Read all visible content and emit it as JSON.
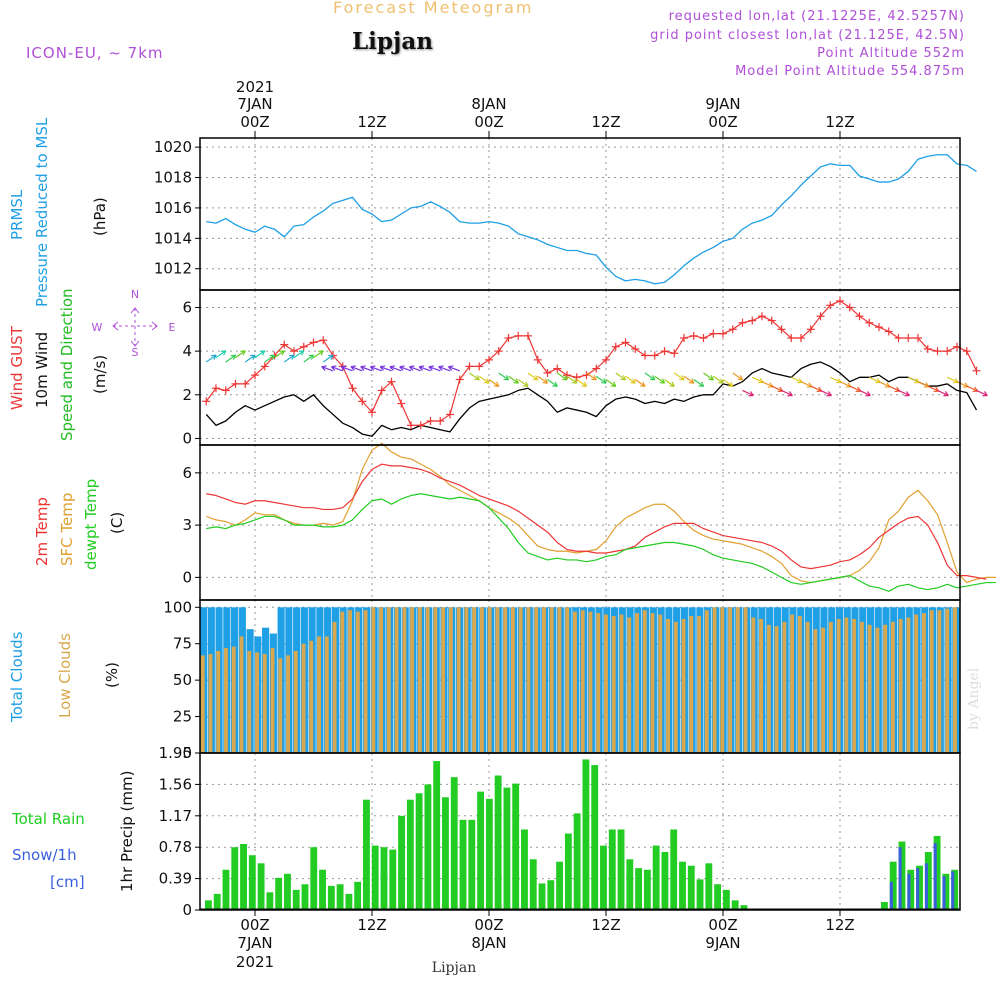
{
  "header": {
    "title": "Forecast Meteogram",
    "station": "Lipjan",
    "model": "ICON-EU, ~ 7km",
    "info": [
      "requested lon,lat (21.1225E, 42.5257N)",
      "grid point closest lon,lat (21.125E, 42.5N)",
      "Point Altitude 552m",
      "Model Point Altitude 554.875m"
    ]
  },
  "time_axis": {
    "top_year": "2021",
    "ticks": [
      {
        "day": "7JAN",
        "hour": "00Z",
        "year": "2021"
      },
      {
        "day": "",
        "hour": "12Z",
        "year": ""
      },
      {
        "day": "8JAN",
        "hour": "00Z",
        "year": ""
      },
      {
        "day": "",
        "hour": "12Z",
        "year": ""
      },
      {
        "day": "9JAN",
        "hour": "00Z",
        "year": ""
      },
      {
        "day": "",
        "hour": "12Z",
        "year": ""
      }
    ],
    "bottom_label": "Lipjan"
  },
  "compass": {
    "n": "N",
    "s": "S",
    "w": "W",
    "e": "E"
  },
  "watermark": "by Angel",
  "colors": {
    "pressure": "#1e9fe6",
    "gust": "#ee3535",
    "wind": "#000000",
    "dir": "#22bb22",
    "t2m": "#ee3535",
    "tsfc": "#e0a030",
    "dewpt": "#22cc22",
    "total_clouds": "#1e9fe6",
    "low_clouds": "#d9a84e",
    "rain": "#22cc22",
    "snow": "#3a5fdd",
    "purple": "#b04fd8"
  },
  "chart_data": [
    {
      "type": "line",
      "panel": "pressure",
      "xlabel": "",
      "ylabel": "(hPa)",
      "label_lines": [
        "PRMSL",
        "Pressure Reduced to MSL"
      ],
      "yticks": [
        1012,
        1014,
        1016,
        1018,
        1020
      ],
      "ylim": [
        1010.6,
        1020.6
      ],
      "x_hours_from_7jan00z": "0 = 7JAN 00Z, hourly step, first value at -5",
      "series": [
        {
          "name": "PRMSL",
          "values": [
            1015.1,
            1015.0,
            1015.3,
            1014.9,
            1014.6,
            1014.4,
            1014.8,
            1014.6,
            1014.1,
            1014.8,
            1014.9,
            1015.4,
            1015.8,
            1016.3,
            1016.5,
            1016.7,
            1015.9,
            1015.6,
            1015.1,
            1015.2,
            1015.6,
            1016.0,
            1016.1,
            1016.4,
            1016.1,
            1015.7,
            1015.1,
            1015.0,
            1015.0,
            1015.1,
            1015.0,
            1014.8,
            1014.3,
            1014.1,
            1013.9,
            1013.6,
            1013.4,
            1013.2,
            1013.2,
            1013.0,
            1012.9,
            1012.1,
            1011.5,
            1011.2,
            1011.3,
            1011.2,
            1011.0,
            1011.1,
            1011.6,
            1012.2,
            1012.7,
            1013.1,
            1013.4,
            1013.8,
            1014.0,
            1014.6,
            1015.0,
            1015.2,
            1015.5,
            1016.2,
            1016.8,
            1017.5,
            1018.1,
            1018.7,
            1018.9,
            1018.8,
            1018.8,
            1018.1,
            1017.9,
            1017.7,
            1017.7,
            1017.9,
            1018.4,
            1019.2,
            1019.4,
            1019.5,
            1019.5,
            1018.9,
            1018.8,
            1018.4
          ]
        }
      ]
    },
    {
      "type": "line",
      "panel": "wind",
      "ylabel": "(m/s)",
      "label_lines": [
        "Wind GUST",
        "10m Wind",
        "Speed and Direction"
      ],
      "yticks": [
        0,
        2,
        4,
        6
      ],
      "ylim": [
        -0.3,
        6.8
      ],
      "series": [
        {
          "name": "Wind GUST",
          "values": [
            1.7,
            2.3,
            2.2,
            2.5,
            2.5,
            2.9,
            3.3,
            3.8,
            4.3,
            4.0,
            4.2,
            4.4,
            4.5,
            3.8,
            3.3,
            2.3,
            1.7,
            1.2,
            2.2,
            2.6,
            1.6,
            0.6,
            0.6,
            0.8,
            0.8,
            1.1,
            2.7,
            3.3,
            3.3,
            3.6,
            4.0,
            4.6,
            4.7,
            4.7,
            3.6,
            3.0,
            3.2,
            2.9,
            2.8,
            2.9,
            3.2,
            3.6,
            4.2,
            4.4,
            4.1,
            3.8,
            3.8,
            4.0,
            3.9,
            4.6,
            4.7,
            4.6,
            4.8,
            4.8,
            5.0,
            5.3,
            5.4,
            5.6,
            5.4,
            5.0,
            4.6,
            4.6,
            5.0,
            5.6,
            6.1,
            6.3,
            6.0,
            5.6,
            5.3,
            5.1,
            4.9,
            4.6,
            4.6,
            4.6,
            4.1,
            4.0,
            4.0,
            4.2,
            4.0,
            3.1
          ]
        },
        {
          "name": "10m Wind",
          "values": [
            1.1,
            0.6,
            0.8,
            1.2,
            1.5,
            1.3,
            1.5,
            1.7,
            1.9,
            2.0,
            1.7,
            2.0,
            1.5,
            1.1,
            0.7,
            0.5,
            0.2,
            0.1,
            0.6,
            0.4,
            0.5,
            0.4,
            0.6,
            0.5,
            0.4,
            0.3,
            0.9,
            1.4,
            1.7,
            1.8,
            1.9,
            2.0,
            2.2,
            2.3,
            2.0,
            1.7,
            1.2,
            1.4,
            1.3,
            1.2,
            1.0,
            1.5,
            1.8,
            1.9,
            1.8,
            1.6,
            1.7,
            1.6,
            1.8,
            1.7,
            1.9,
            2.0,
            2.0,
            2.5,
            2.4,
            2.6,
            3.0,
            3.2,
            3.0,
            2.9,
            2.8,
            3.2,
            3.4,
            3.5,
            3.3,
            3.0,
            2.6,
            2.8,
            2.8,
            2.9,
            2.6,
            2.8,
            2.8,
            2.6,
            2.4,
            2.4,
            2.5,
            2.2,
            2.1,
            1.3
          ]
        }
      ],
      "direction_arrows": "coloured arrows drawn along 10m wind, pointing toward travel direction"
    },
    {
      "type": "line",
      "panel": "temperature",
      "ylabel": "(C)",
      "label_lines": [
        "2m Temp",
        "SFC Temp",
        "dewpt Temp"
      ],
      "yticks": [
        0,
        3,
        6
      ],
      "ylim": [
        -1.3,
        7.6
      ],
      "series": [
        {
          "name": "2m Temp",
          "values": [
            4.8,
            4.7,
            4.5,
            4.3,
            4.2,
            4.4,
            4.4,
            4.3,
            4.2,
            4.1,
            4.0,
            4.0,
            3.9,
            3.9,
            4.0,
            4.5,
            5.5,
            6.2,
            6.5,
            6.4,
            6.4,
            6.3,
            6.2,
            6.0,
            5.7,
            5.5,
            5.3,
            5.0,
            4.7,
            4.5,
            4.3,
            4.1,
            3.8,
            3.4,
            3.0,
            2.6,
            2.0,
            1.6,
            1.5,
            1.5,
            1.4,
            1.4,
            1.5,
            1.6,
            1.8,
            2.3,
            2.6,
            2.9,
            3.1,
            3.1,
            3.1,
            2.8,
            2.6,
            2.4,
            2.3,
            2.2,
            2.1,
            2.0,
            1.8,
            1.5,
            1.0,
            0.6,
            0.5,
            0.6,
            0.7,
            0.9,
            1.0,
            1.3,
            1.7,
            2.3,
            2.7,
            3.1,
            3.4,
            3.5,
            3.0,
            2.0,
            0.7,
            0.1,
            0.1,
            0.0,
            -0.1
          ]
        },
        {
          "name": "SFC Temp",
          "values": [
            3.5,
            3.3,
            3.2,
            3.0,
            3.3,
            3.7,
            3.6,
            3.6,
            3.3,
            3.1,
            3.0,
            3.0,
            3.1,
            3.0,
            3.2,
            4.4,
            6.2,
            7.3,
            7.7,
            7.2,
            6.9,
            6.8,
            6.5,
            6.2,
            5.8,
            5.3,
            5.0,
            4.7,
            4.4,
            4.0,
            3.7,
            3.4,
            3.0,
            2.4,
            1.8,
            1.6,
            1.5,
            1.5,
            1.4,
            1.5,
            1.6,
            2.1,
            2.9,
            3.4,
            3.7,
            4.0,
            4.2,
            4.2,
            3.8,
            3.2,
            2.7,
            2.4,
            2.2,
            2.1,
            2.0,
            1.9,
            1.7,
            1.5,
            1.2,
            0.8,
            0.1,
            -0.2,
            -0.3,
            -0.2,
            -0.1,
            0.0,
            0.1,
            0.4,
            0.9,
            1.7,
            3.3,
            3.8,
            4.6,
            5.0,
            4.4,
            3.6,
            2.0,
            0.3,
            -0.3,
            -0.1,
            0.0,
            0.0
          ]
        },
        {
          "name": "dewpt Temp",
          "values": [
            2.8,
            2.9,
            2.8,
            3.0,
            3.1,
            3.3,
            3.5,
            3.5,
            3.3,
            3.0,
            3.0,
            3.0,
            2.9,
            2.9,
            3.0,
            3.3,
            3.9,
            4.4,
            4.5,
            4.2,
            4.5,
            4.7,
            4.8,
            4.7,
            4.6,
            4.5,
            4.6,
            4.5,
            4.4,
            4.0,
            3.4,
            2.8,
            2.0,
            1.4,
            1.2,
            1.0,
            1.1,
            1.0,
            1.0,
            0.9,
            1.0,
            1.2,
            1.3,
            1.6,
            1.7,
            1.8,
            1.9,
            2.0,
            2.0,
            1.9,
            1.8,
            1.6,
            1.3,
            1.1,
            1.0,
            0.9,
            0.8,
            0.6,
            0.3,
            0.0,
            -0.3,
            -0.4,
            -0.3,
            -0.2,
            -0.1,
            0.0,
            0.1,
            -0.2,
            -0.5,
            -0.6,
            -0.8,
            -0.5,
            -0.4,
            -0.6,
            -0.7,
            -0.6,
            -0.4,
            -0.6,
            -0.5,
            -0.4,
            -0.3,
            -0.3
          ]
        }
      ]
    },
    {
      "type": "bar",
      "panel": "clouds",
      "ylabel": "(%)",
      "label_lines": [
        "Total Clouds",
        "Low Clouds"
      ],
      "yticks": [
        0,
        25,
        50,
        75,
        100
      ],
      "ylim": [
        0,
        105
      ],
      "series": [
        {
          "name": "Total Clouds",
          "values": [
            100,
            100,
            100,
            100,
            100,
            100,
            85,
            80,
            86,
            82,
            100,
            100,
            100,
            100,
            100,
            100,
            100,
            100,
            100,
            100,
            100,
            100,
            100,
            100,
            100,
            100,
            100,
            100,
            100,
            100,
            100,
            100,
            100,
            100,
            100,
            100,
            100,
            100,
            100,
            100,
            100,
            100,
            100,
            100,
            100,
            100,
            100,
            100,
            100,
            100,
            100,
            100,
            100,
            100,
            100,
            100,
            100,
            100,
            100,
            100,
            100,
            100,
            100,
            100,
            100,
            100,
            100,
            100,
            100,
            100,
            100,
            100,
            100,
            100,
            100,
            100,
            100,
            100,
            100,
            100,
            100,
            100,
            100,
            100,
            100,
            100,
            100,
            100,
            100,
            100,
            100,
            100,
            100,
            100,
            100,
            100,
            100,
            100
          ]
        },
        {
          "name": "Low Clouds",
          "values": [
            67,
            68,
            70,
            72,
            73,
            80,
            70,
            69,
            68,
            72,
            65,
            67,
            70,
            75,
            77,
            80,
            80,
            90,
            97,
            98,
            97,
            98,
            100,
            100,
            100,
            100,
            100,
            100,
            100,
            100,
            100,
            100,
            100,
            100,
            100,
            100,
            100,
            100,
            100,
            100,
            100,
            100,
            100,
            100,
            100,
            100,
            100,
            100,
            97,
            98,
            97,
            96,
            95,
            94,
            95,
            93,
            96,
            98,
            96,
            95,
            92,
            90,
            92,
            94,
            94,
            98,
            100,
            100,
            100,
            100,
            100,
            93,
            92,
            88,
            87,
            90,
            95,
            94,
            90,
            85,
            86,
            90,
            92,
            93,
            92,
            90,
            88,
            86,
            88,
            90,
            92,
            93,
            95,
            96,
            98,
            98,
            99,
            100
          ]
        }
      ]
    },
    {
      "type": "bar",
      "panel": "precip",
      "ylabel": "1hr Precip (mm)",
      "label_lines": [
        "Total Rain",
        "Snow/1h",
        "[cm]"
      ],
      "yticks": [
        0,
        0.39,
        0.78,
        1.17,
        1.56,
        1.95
      ],
      "ytick_labels": [
        "0",
        "0.39",
        "0.78",
        "1.17",
        "1.56",
        "1.95"
      ],
      "ylim": [
        0,
        1.95
      ],
      "series": [
        {
          "name": "Total Rain",
          "values": [
            0.12,
            0.2,
            0.5,
            0.78,
            0.82,
            0.68,
            0.58,
            0.22,
            0.4,
            0.45,
            0.25,
            0.32,
            0.78,
            0.5,
            0.3,
            0.32,
            0.2,
            0.35,
            1.37,
            0.8,
            0.78,
            0.75,
            1.17,
            1.37,
            1.45,
            1.56,
            1.85,
            1.4,
            1.65,
            1.12,
            1.12,
            1.47,
            1.38,
            1.67,
            1.52,
            1.57,
            1.0,
            0.63,
            0.33,
            0.37,
            0.6,
            0.95,
            1.2,
            1.87,
            1.8,
            0.8,
            1.0,
            1.0,
            0.63,
            0.52,
            0.5,
            0.8,
            0.72,
            1.0,
            0.6,
            0.55,
            0.38,
            0.58,
            0.32,
            0.25,
            0.12,
            0.06,
            0.0,
            0.0,
            0.0,
            0.0,
            0.0,
            0.0,
            0.0,
            0.0,
            0.0,
            0.0,
            0.0,
            0.0,
            0.0,
            0.0,
            0.0,
            0.1,
            0.6,
            0.85,
            0.5,
            0.55,
            0.72,
            0.92,
            0.45,
            0.5
          ]
        },
        {
          "name": "Snow/1h",
          "values": [
            0,
            0,
            0,
            0,
            0,
            0,
            0,
            0,
            0,
            0,
            0,
            0,
            0,
            0,
            0,
            0,
            0,
            0,
            0,
            0,
            0,
            0,
            0,
            0,
            0,
            0,
            0,
            0,
            0,
            0,
            0,
            0,
            0,
            0,
            0,
            0,
            0,
            0,
            0,
            0,
            0,
            0,
            0,
            0,
            0,
            0,
            0,
            0,
            0,
            0,
            0,
            0,
            0,
            0,
            0,
            0,
            0,
            0,
            0,
            0,
            0,
            0,
            0,
            0,
            0,
            0,
            0,
            0,
            0,
            0,
            0,
            0,
            0,
            0,
            0,
            0,
            0,
            0,
            0.35,
            0.78,
            0.45,
            0.52,
            0.58,
            0.83,
            0.42,
            0.48
          ]
        }
      ]
    }
  ]
}
